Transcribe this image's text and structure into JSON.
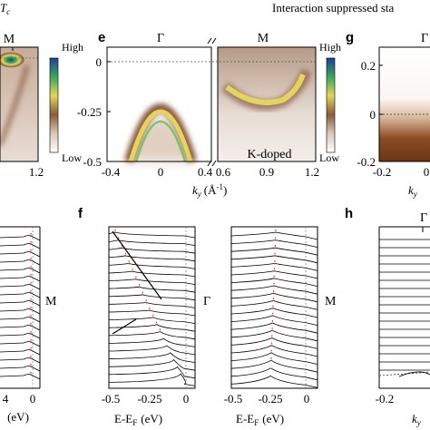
{
  "figure": {
    "header_title": "Interaction suppressed sta",
    "panel_letters": {
      "e": "e",
      "f": "f",
      "g": "g",
      "h": "h"
    },
    "top_left": {
      "tc_label": "T",
      "tc_sub": "c",
      "m_label": "M",
      "x_tick_right": "1.2",
      "colorbar_high": "High",
      "colorbar_low": "Low"
    },
    "panel_e": {
      "gamma_label": "Γ",
      "m_label": "M",
      "y_ticks": [
        "0",
        "-0.25",
        "-0.5"
      ],
      "x_ticks_left": [
        "-0.4",
        "0",
        "0.4"
      ],
      "x_ticks_right": [
        "0.6",
        "0.9",
        "1.2"
      ],
      "x_label_k": "k",
      "x_label_sub": "y",
      "x_label_units": "(Å",
      "x_label_sup": "-1",
      "x_label_close": ")",
      "inset_label": "K-doped",
      "colorbar_high": "High",
      "colorbar_low": "Low"
    },
    "panel_g": {
      "gamma_label": "Γ",
      "y_ticks": [
        "0.2",
        "0",
        "-0.2"
      ],
      "x_ticks": [
        "-0.2",
        "0"
      ],
      "x_label_k": "k",
      "x_label_sub": "y"
    },
    "bottom_left": {
      "m_label": "M",
      "x_ticks": [
        "4",
        "0"
      ],
      "x_label": "(eV)"
    },
    "panel_f_left": {
      "gamma_label": "Γ",
      "x_ticks": [
        "-0.5",
        "-0.25",
        "0"
      ],
      "x_label_main": "E-E",
      "x_label_sub": "F",
      "x_label_units": "(eV)"
    },
    "panel_f_right": {
      "m_label": "M",
      "x_ticks": [
        "-0.5",
        "-0.25",
        "0"
      ],
      "x_label_main": "E-E",
      "x_label_sub": "F",
      "x_label_units": "(eV)"
    },
    "panel_h": {
      "gamma_label": "Γ",
      "x_ticks": [
        "-0.2"
      ],
      "x_label_k": "k",
      "x_label_sub": "y"
    }
  }
}
